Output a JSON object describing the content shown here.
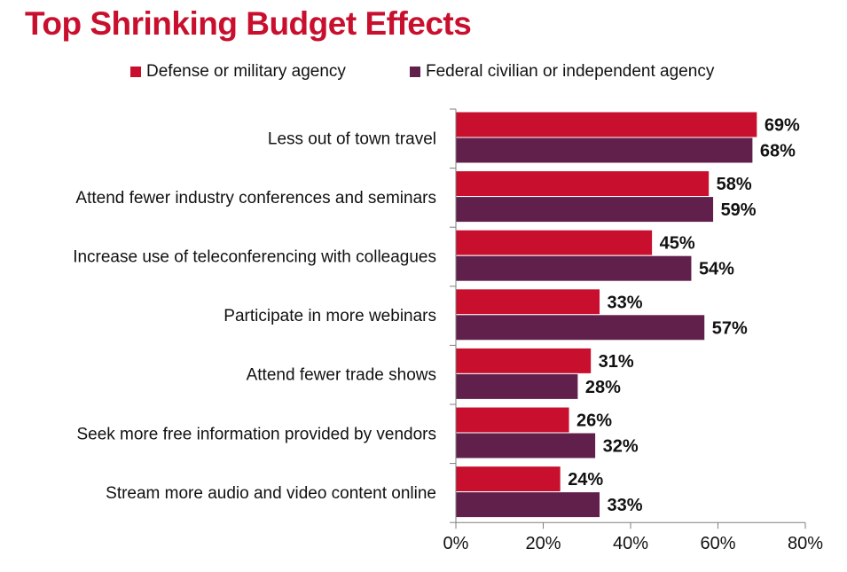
{
  "title": "Top Shrinking Budget Effects",
  "chart_data": {
    "type": "bar",
    "orientation": "horizontal",
    "title": "Top Shrinking Budget Effects",
    "categories": [
      "Less out of town travel",
      "Attend fewer industry conferences and seminars",
      "Increase use of teleconferencing with colleagues",
      "Participate in more webinars",
      "Attend fewer trade shows",
      "Seek more free information provided by vendors",
      "Stream more audio and video content online"
    ],
    "series": [
      {
        "name": "Defense or military agency",
        "color": "#c8102e",
        "values": [
          69,
          58,
          45,
          33,
          31,
          26,
          24
        ],
        "labels": [
          "69%",
          "58%",
          "45%",
          "33%",
          "31%",
          "26%",
          "24%"
        ]
      },
      {
        "name": "Federal civilian or independent agency",
        "color": "#61204b",
        "values": [
          68,
          59,
          54,
          57,
          28,
          32,
          33
        ],
        "labels": [
          "68%",
          "59%",
          "54%",
          "57%",
          "28%",
          "32%",
          "33%"
        ]
      }
    ],
    "xlim": [
      0,
      80
    ],
    "ticks": [
      0,
      20,
      40,
      60,
      80
    ],
    "tick_labels": [
      "0%",
      "20%",
      "40%",
      "60%",
      "80%"
    ],
    "legend_position": "top",
    "grid": false
  }
}
